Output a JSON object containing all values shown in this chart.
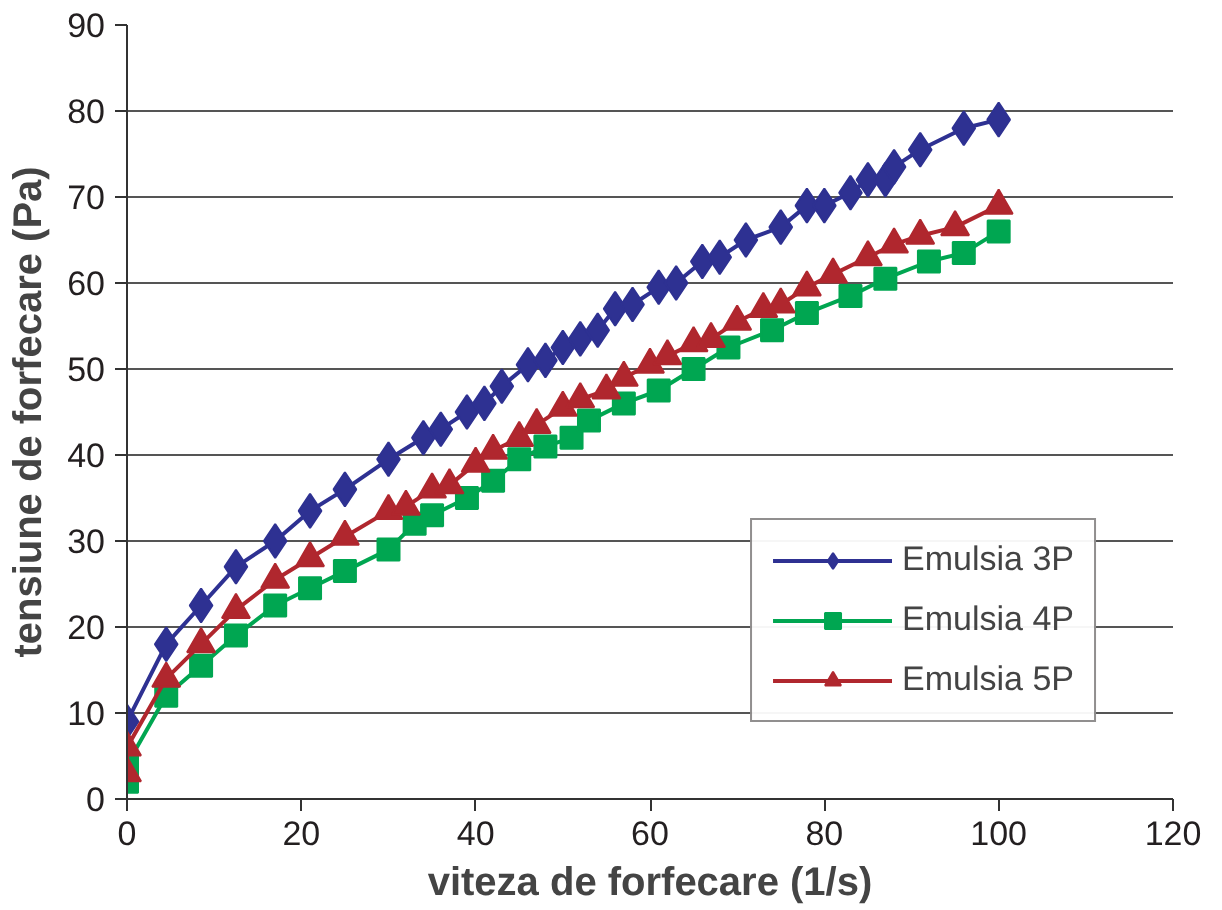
{
  "chart_data": {
    "type": "line",
    "xlabel": "viteza de forfecare (1/s)",
    "ylabel": "tensiune de forfecare (Pa)",
    "xlim": [
      0,
      120
    ],
    "ylim": [
      0,
      90
    ],
    "xticks": [
      0,
      20,
      40,
      60,
      80,
      100,
      120
    ],
    "yticks": [
      0,
      10,
      20,
      30,
      40,
      50,
      60,
      70,
      80,
      90
    ],
    "grid": "y",
    "legend": "right",
    "line_style": "solid",
    "series": [
      {
        "name": "Emulsia 3P",
        "color": "#2e3192",
        "marker": "diamond",
        "x": [
          0,
          4.5,
          8.5,
          12.5,
          17,
          21,
          25,
          30,
          34,
          36,
          39,
          41,
          43,
          46,
          48,
          50,
          52,
          54,
          56,
          58,
          61,
          63,
          66,
          68,
          71,
          75,
          78,
          80,
          83,
          85,
          87,
          88,
          91,
          96,
          100
        ],
        "values": [
          9,
          18,
          22.5,
          27,
          30,
          33.5,
          36,
          39.5,
          42,
          43,
          45,
          46,
          48,
          50.5,
          51,
          52.5,
          53.5,
          54.5,
          57,
          57.5,
          59.5,
          60,
          62.5,
          63,
          65,
          66.5,
          69,
          69,
          70.5,
          72,
          72,
          73.5,
          75.5,
          78,
          79
        ]
      },
      {
        "name": "Emulsia 4P",
        "color": "#00a651",
        "marker": "square",
        "x": [
          0,
          0,
          4.5,
          8.5,
          12.5,
          17,
          21,
          25,
          30,
          33,
          35,
          39,
          42,
          45,
          48,
          51,
          53,
          57,
          61,
          65,
          69,
          74,
          78,
          83,
          87,
          92,
          96,
          100
        ],
        "values": [
          2,
          4,
          12,
          15.5,
          19,
          22.5,
          24.5,
          26.5,
          29,
          32,
          33,
          35,
          37,
          39.5,
          41,
          42,
          44,
          46,
          47.5,
          50,
          52.5,
          54.5,
          56.5,
          58.5,
          60.5,
          62.5,
          63.5,
          66
        ]
      },
      {
        "name": "Emulsia 5P",
        "color": "#b0272e",
        "marker": "triangle",
        "x": [
          0,
          0,
          4.5,
          8.5,
          12.5,
          17,
          21,
          25,
          30,
          32,
          35,
          37,
          40,
          42,
          45,
          47,
          50,
          52,
          55,
          57,
          60,
          62,
          65,
          67,
          70,
          73,
          75,
          78,
          81,
          85,
          88,
          91,
          95,
          100
        ],
        "values": [
          3,
          6,
          14,
          18,
          22,
          25.5,
          28,
          30.5,
          33.5,
          34,
          36,
          36.5,
          39,
          40.5,
          42,
          43.5,
          45.5,
          46.5,
          47.5,
          49,
          50.5,
          51.5,
          53,
          53.5,
          55.5,
          57,
          57.5,
          59.5,
          61,
          63,
          64.5,
          65.5,
          66.5,
          69
        ]
      }
    ]
  }
}
